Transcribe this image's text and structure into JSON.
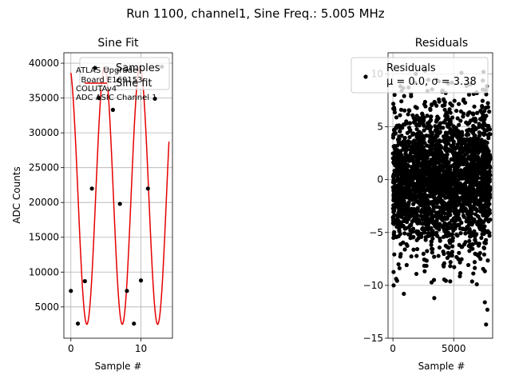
{
  "figure": {
    "suptitle": "Run 1100, channel1, Sine Freq.: 5.005 MHz"
  },
  "chart_data": [
    {
      "type": "scatter",
      "panel": "left",
      "title": "Sine Fit",
      "xlabel": "Sample #",
      "ylabel": "ADC Counts",
      "xlim": [
        -1,
        14.5
      ],
      "ylim": [
        500,
        41500
      ],
      "xticks": [
        0,
        10
      ],
      "yticks": [
        5000,
        10000,
        15000,
        20000,
        25000,
        30000,
        35000,
        40000
      ],
      "grid": true,
      "legend_position": "top-right",
      "legend": [
        "Samples",
        "Sine fit"
      ],
      "annotation": [
        "ATLAS Upgrade",
        "  Board E169153",
        "COLUTAv4",
        "ADC ASIC Channel 1"
      ],
      "series": [
        {
          "name": "Samples",
          "style": "points",
          "color": "#000000",
          "x": [
            0,
            1,
            2,
            3,
            4,
            5,
            6,
            7,
            8,
            9,
            10,
            11,
            12,
            13
          ],
          "y": [
            7300,
            2600,
            8700,
            22000,
            35000,
            39300,
            33300,
            19800,
            7300,
            2600,
            8800,
            22000,
            34900,
            39500
          ]
        },
        {
          "name": "Sine fit",
          "style": "line",
          "color": "#e60000",
          "fit": {
            "offset": 21000,
            "amplitude": 18500,
            "period": 5.055,
            "phase": 1.88,
            "x_range": [
              0,
              14
            ]
          }
        }
      ]
    },
    {
      "type": "scatter",
      "panel": "right",
      "title": "Residuals",
      "xlabel": "Sample #",
      "xlim": [
        -400,
        8200
      ],
      "ylim": [
        -15,
        12
      ],
      "xticks": [
        0,
        5000
      ],
      "yticks": [
        -15,
        -10,
        -5,
        0,
        5,
        10
      ],
      "grid": true,
      "legend_position": "top-right",
      "legend": [
        "Residuals",
        "μ = 0.0, σ = 3.38"
      ],
      "series": [
        {
          "name": "Residuals",
          "style": "points",
          "color": "#000000",
          "n_points": 8000,
          "x_range": [
            0,
            7999
          ],
          "mean": 0.0,
          "sigma": 3.38,
          "outliers": [
            {
              "x": 4700,
              "y": 12.5
            },
            {
              "x": 1880,
              "y": 10.0
            },
            {
              "x": 2650,
              "y": 10.3
            },
            {
              "x": 5640,
              "y": 10.1
            },
            {
              "x": 7450,
              "y": 10.2
            },
            {
              "x": 900,
              "y": -10.8
            },
            {
              "x": 3400,
              "y": -11.2
            },
            {
              "x": 7770,
              "y": -12.3
            },
            {
              "x": 7560,
              "y": -11.6
            },
            {
              "x": 7660,
              "y": -13.7
            },
            {
              "x": 60,
              "y": -10.0
            },
            {
              "x": 6900,
              "y": -9.9
            }
          ]
        }
      ]
    }
  ]
}
